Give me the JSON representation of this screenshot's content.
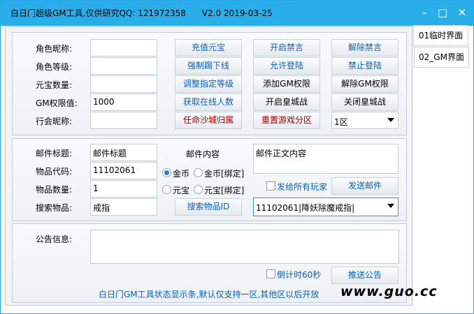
{
  "window": {
    "title": "白日门超级GM工具,仅供研究QQ: 121972358      V2.0 2019-03-25",
    "minimize": "–",
    "maximize": "□",
    "close": "✕"
  },
  "tabs": [
    {
      "label": "01临时界面"
    },
    {
      "label": "02_GM界面"
    }
  ],
  "player": {
    "labels": [
      "角色昵称:",
      "角色等级:",
      "元宝数量:",
      "GM权限值:",
      "行会昵称:"
    ],
    "values": [
      "",
      "",
      "",
      "1000",
      ""
    ],
    "buttons": [
      [
        "充值元宝",
        "开启禁言",
        "解除禁言"
      ],
      [
        "强制踢下线",
        "允许登陆",
        "禁止登陆"
      ],
      [
        "调整指定等级",
        "添加GM权限",
        "解除GM权限"
      ],
      [
        "获取在线人数",
        "开启皇城战",
        "关闭皇城战"
      ],
      [
        "任命沙城归属",
        "重置游戏分区"
      ]
    ],
    "zone_select": "1区"
  },
  "mail": {
    "labels": [
      "邮件标题:",
      "物品代码:",
      "物品数量:",
      "搜索物品:"
    ],
    "values": [
      "邮件标题",
      "11102061",
      "1",
      "戒指"
    ],
    "content_label": "邮件内容",
    "content_value": "邮件正文内容",
    "radios": [
      {
        "label": "金币",
        "checked": true
      },
      {
        "label": "金币[绑定]",
        "checked": false
      },
      {
        "label": "元宝",
        "checked": false
      },
      {
        "label": "元宝[绑定]",
        "checked": false
      }
    ],
    "send_all_label": "发给所有玩家",
    "send_button": "发送邮件",
    "search_button": "搜索物品ID",
    "item_select": "11102061|降妖除魔戒指|"
  },
  "notice": {
    "label": "公告信息:",
    "value": "",
    "countdown_label": "倒计时60秒",
    "push_button": "推送公告"
  },
  "status": "白日门GM工具状态显示条,默认仅支持一区,其他区以后开放",
  "watermark": "www.guo.cc",
  "colors": {
    "titlebar": "#29aee9",
    "blue_text": "#0a60c0",
    "red_text": "#a00000"
  }
}
